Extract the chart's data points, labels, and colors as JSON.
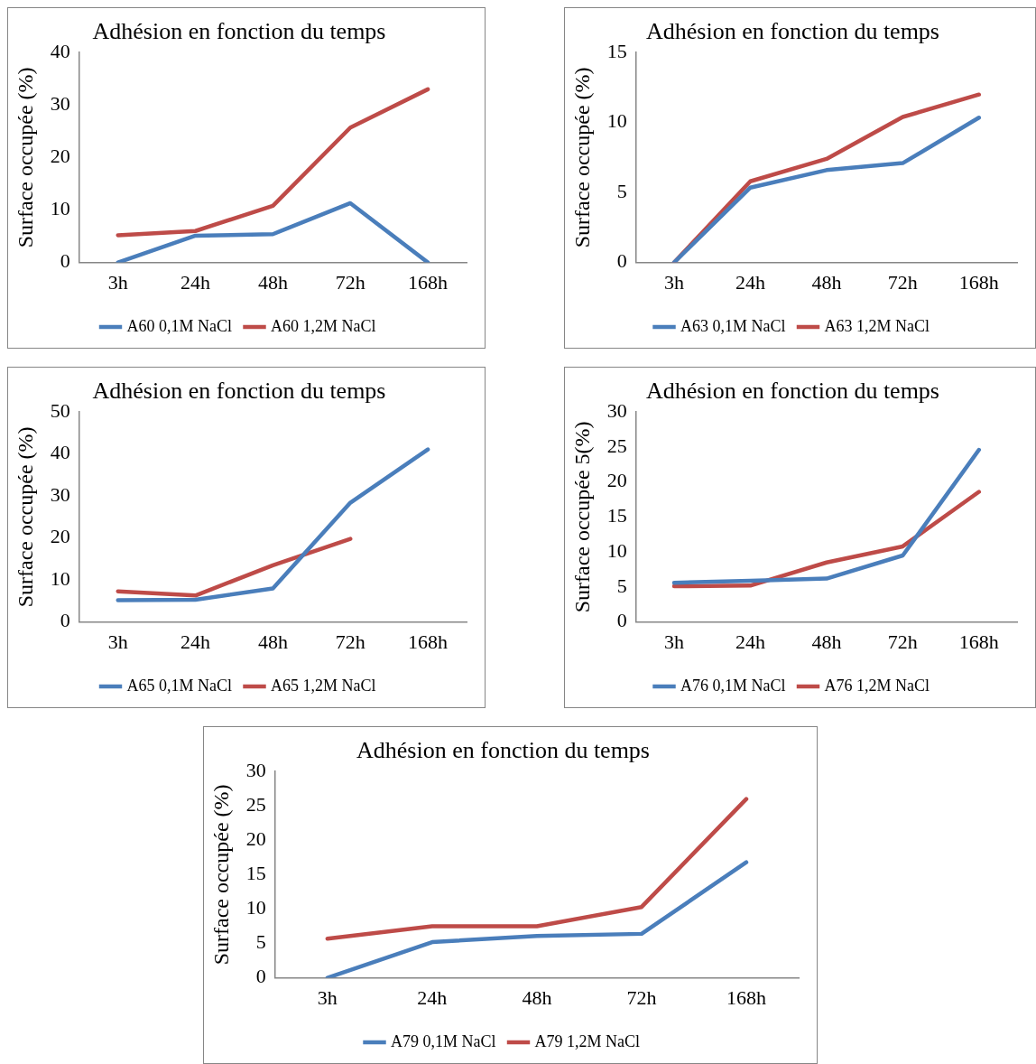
{
  "chart_data": [
    {
      "type": "line",
      "title": "Adhésion en fonction du temps",
      "ylabel": "Surface occupée (%)",
      "categories": [
        "3h",
        "24h",
        "48h",
        "72h",
        "168h"
      ],
      "series": [
        {
          "name": "A60 0,1M NaCl",
          "color": "#4a7ebb",
          "values": [
            0,
            5.1,
            5.4,
            11.3,
            0
          ]
        },
        {
          "name": "A60 1,2M NaCl",
          "color": "#be4b48",
          "values": [
            5.2,
            6,
            10.8,
            25.7,
            33
          ]
        }
      ],
      "ylim": [
        0,
        40
      ],
      "yticks": [
        0,
        10,
        20,
        30,
        40
      ],
      "grid": false,
      "legend": "bottom"
    },
    {
      "type": "line",
      "title": "Adhésion en fonction du temps",
      "ylabel": "Surface occupée (%)",
      "categories": [
        "3h",
        "24h",
        "48h",
        "72h",
        "168h"
      ],
      "series": [
        {
          "name": "A63 0,1M NaCl",
          "color": "#4a7ebb",
          "values": [
            0,
            5.35,
            6.6,
            7.1,
            10.35
          ]
        },
        {
          "name": "A63 1,2M NaCl",
          "color": "#be4b48",
          "values": [
            0,
            5.8,
            7.4,
            10.4,
            12
          ]
        }
      ],
      "ylim": [
        0,
        15
      ],
      "yticks": [
        0,
        5,
        10,
        15
      ],
      "grid": false,
      "legend": "bottom"
    },
    {
      "type": "line",
      "title": "Adhésion en fonction du temps",
      "ylabel": "Surface occupée (%)",
      "categories": [
        "3h",
        "24h",
        "48h",
        "72h",
        "168h"
      ],
      "series": [
        {
          "name": "A65 0,1M NaCl",
          "color": "#4a7ebb",
          "values": [
            5.2,
            5.3,
            8,
            28.4,
            41.1
          ]
        },
        {
          "name": "A65 1,2M NaCl",
          "color": "#be4b48",
          "values": [
            7.3,
            6.3,
            13.5,
            19.8,
            null
          ]
        }
      ],
      "ylim": [
        0,
        50
      ],
      "yticks": [
        0,
        10,
        20,
        30,
        40,
        50
      ],
      "grid": false,
      "legend": "bottom"
    },
    {
      "type": "line",
      "title": "Adhésion en fonction du temps",
      "ylabel": "Surface occupée 5(%)",
      "categories": [
        "3h",
        "24h",
        "48h",
        "72h",
        "168h"
      ],
      "series": [
        {
          "name": "A76 0,1M NaCl",
          "color": "#4a7ebb",
          "values": [
            5.6,
            5.9,
            6.2,
            9.5,
            24.6
          ]
        },
        {
          "name": "A76 1,2M NaCl",
          "color": "#be4b48",
          "values": [
            5.1,
            5.2,
            8.5,
            10.8,
            18.6
          ]
        }
      ],
      "ylim": [
        0,
        30
      ],
      "yticks": [
        0,
        5,
        10,
        15,
        20,
        25,
        30
      ],
      "grid": false,
      "legend": "bottom"
    },
    {
      "type": "line",
      "title": "Adhésion en fonction du temps",
      "ylabel": "Surface occupée (%)",
      "categories": [
        "3h",
        "24h",
        "48h",
        "72h",
        "168h"
      ],
      "series": [
        {
          "name": "A79 0,1M NaCl",
          "color": "#4a7ebb",
          "values": [
            0,
            5.2,
            6.1,
            6.4,
            16.8
          ]
        },
        {
          "name": "A79 1,2M NaCl",
          "color": "#be4b48",
          "values": [
            5.7,
            7.5,
            7.5,
            10.3,
            26
          ]
        }
      ],
      "ylim": [
        0,
        30
      ],
      "yticks": [
        0,
        5,
        10,
        15,
        20,
        25,
        30
      ],
      "grid": false,
      "legend": "bottom"
    }
  ]
}
